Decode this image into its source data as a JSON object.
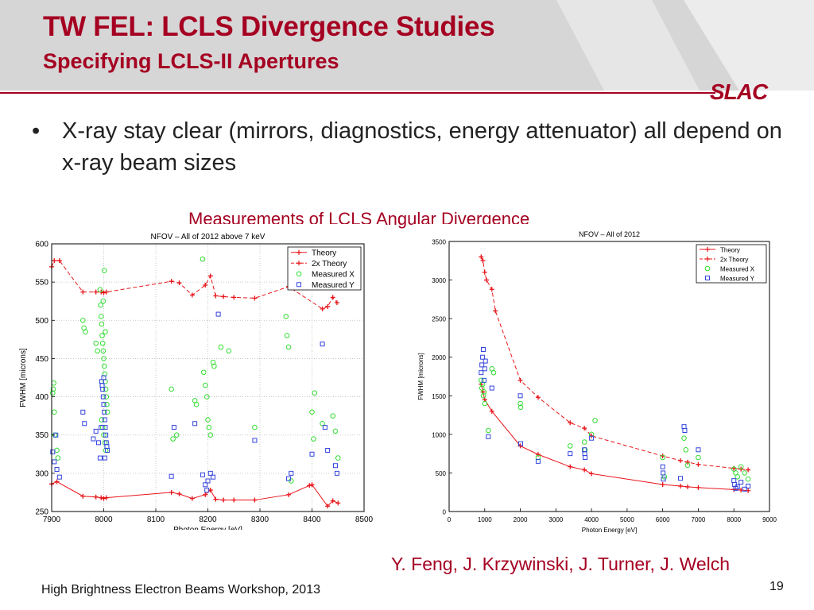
{
  "slide": {
    "title": "TW FEL: LCLS Divergence Studies",
    "subtitle": "Specifying LCLS-II Apertures",
    "logo": "SLAC",
    "bullet": "X-ray stay clear (mirrors, diagnostics, energy attenuator) all depend on x-ray beam sizes",
    "bullet_marker": "•",
    "caption": "Measurements of LCLS Angular Divergence",
    "authors": "Y. Feng, J. Krzywinski, J. Turner, J. Welch",
    "footer": "High Brightness Electron Beams Workshop, 2013",
    "page_number": "19",
    "accent_color": "#a50021"
  },
  "chart_data": [
    {
      "type": "scatter",
      "title": "NFOV – All of 2012 above 7 keV",
      "xlabel": "Photon Energy [eV]",
      "ylabel": "FWHM [microns]",
      "xlim": [
        7900,
        8500
      ],
      "ylim": [
        250,
        600
      ],
      "xticks": [
        7900,
        8000,
        8100,
        8200,
        8300,
        8400,
        8500
      ],
      "yticks": [
        250,
        300,
        350,
        400,
        450,
        500,
        550,
        600
      ],
      "grid": true,
      "legend": "top-right",
      "series": [
        {
          "name": "Theory",
          "style": "line-plus",
          "color": "#e8141a",
          "x": [
            7900,
            7910,
            7960,
            7985,
            7995,
            8000,
            8005,
            8130,
            8145,
            8170,
            8195,
            8205,
            8215,
            8230,
            8250,
            8290,
            8355,
            8395,
            8400,
            8430,
            8440,
            8450
          ],
          "y": [
            286,
            289,
            270,
            269,
            268,
            267,
            268,
            275,
            273,
            267,
            272,
            278,
            266,
            265,
            265,
            265,
            272,
            284,
            285,
            257,
            264,
            261
          ]
        },
        {
          "name": "2x  Theory",
          "style": "dash-plus",
          "color": "#e8141a",
          "x": [
            7900,
            7905,
            7915,
            7960,
            7985,
            7995,
            8000,
            8005,
            8130,
            8145,
            8170,
            8195,
            8205,
            8215,
            8230,
            8250,
            8290,
            8355,
            8420,
            8430,
            8440,
            8448
          ],
          "y": [
            570,
            578,
            578,
            537,
            537,
            537,
            536,
            537,
            551,
            549,
            533,
            546,
            558,
            532,
            531,
            530,
            529,
            544,
            515,
            518,
            530,
            523
          ]
        },
        {
          "name": "Measured X",
          "style": "circle",
          "color": "#33dd33",
          "x": [
            7902,
            7903,
            7904,
            7905,
            7906,
            7910,
            7912,
            7960,
            7962,
            7965,
            7985,
            7988,
            7993,
            7994,
            7995,
            7996,
            7997,
            7998,
            7999,
            8000,
            8001,
            8002,
            8003,
            8004,
            8005,
            8006,
            8007,
            7996,
            7998,
            8000,
            8002,
            8004,
            8001,
            7999,
            8003,
            8130,
            8133,
            8140,
            8175,
            8178,
            8190,
            8192,
            8195,
            8198,
            8200,
            8202,
            8205,
            8210,
            8212,
            8225,
            8240,
            8290,
            8350,
            8352,
            8355,
            8360,
            8400,
            8403,
            8405,
            8420,
            8440,
            8445,
            8448,
            8450
          ],
          "y": [
            405,
            410,
            418,
            380,
            350,
            330,
            320,
            500,
            490,
            485,
            470,
            460,
            540,
            520,
            505,
            495,
            480,
            470,
            460,
            450,
            440,
            430,
            420,
            410,
            400,
            390,
            380,
            370,
            360,
            350,
            340,
            330,
            565,
            525,
            485,
            410,
            345,
            350,
            395,
            390,
            580,
            432,
            415,
            400,
            370,
            360,
            350,
            445,
            440,
            465,
            460,
            360,
            505,
            480,
            465,
            290,
            380,
            345,
            405,
            365,
            375,
            355,
            560,
            320
          ]
        },
        {
          "name": "Measured Y",
          "style": "square",
          "color": "#3344dd",
          "x": [
            7902,
            7905,
            7908,
            7910,
            7915,
            7960,
            7963,
            7980,
            7985,
            7990,
            7993,
            7995,
            7996,
            7997,
            7998,
            7999,
            8000,
            8001,
            8002,
            8003,
            8004,
            8005,
            8006,
            8007,
            8000,
            8002,
            8130,
            8135,
            8175,
            8190,
            8195,
            8198,
            8200,
            8205,
            8210,
            8220,
            8290,
            8355,
            8360,
            8400,
            8420,
            8425,
            8430,
            8445,
            8448
          ],
          "y": [
            328,
            315,
            350,
            305,
            295,
            380,
            365,
            345,
            355,
            340,
            320,
            360,
            420,
            415,
            410,
            400,
            390,
            380,
            370,
            360,
            350,
            340,
            335,
            330,
            425,
            320,
            296,
            360,
            365,
            298,
            285,
            278,
            290,
            300,
            295,
            508,
            343,
            293,
            300,
            325,
            469,
            360,
            330,
            310,
            300
          ]
        }
      ]
    },
    {
      "type": "scatter",
      "title": "NFOV – All of 2012",
      "xlabel": "Photon Energy [eV]",
      "ylabel": "FWHM [microns]",
      "xlim": [
        0,
        9000
      ],
      "ylim": [
        0,
        3500
      ],
      "xticks": [
        0,
        1000,
        2000,
        3000,
        4000,
        5000,
        6000,
        7000,
        8000,
        9000
      ],
      "yticks": [
        0,
        500,
        1000,
        1500,
        2000,
        2500,
        3000,
        3500
      ],
      "grid": false,
      "legend": "top-right",
      "series": [
        {
          "name": "Theory",
          "style": "line-plus",
          "color": "#e8141a",
          "x": [
            900,
            950,
            1000,
            1200,
            2000,
            2500,
            3400,
            3800,
            4000,
            6000,
            6500,
            6700,
            7000,
            8000,
            8200,
            8400
          ],
          "y": [
            1650,
            1550,
            1450,
            1300,
            850,
            740,
            580,
            540,
            490,
            350,
            330,
            320,
            310,
            285,
            278,
            270
          ]
        },
        {
          "name": "2x  Theory",
          "style": "dash-plus",
          "color": "#e8141a",
          "x": [
            900,
            950,
            1000,
            1050,
            1200,
            1300,
            2000,
            2500,
            3400,
            3800,
            4000,
            6000,
            6500,
            6700,
            7000,
            8000,
            8200,
            8400
          ],
          "y": [
            3300,
            3250,
            3100,
            3000,
            2880,
            2600,
            1700,
            1480,
            1150,
            1080,
            980,
            720,
            660,
            640,
            610,
            560,
            550,
            540
          ]
        },
        {
          "name": "Measured X",
          "style": "circle",
          "color": "#33dd33",
          "x": [
            900,
            920,
            940,
            960,
            980,
            1000,
            1100,
            1200,
            1250,
            2000,
            2010,
            2500,
            3400,
            3800,
            3820,
            4000,
            4100,
            6000,
            6050,
            6600,
            6650,
            6700,
            7000,
            8000,
            8050,
            8100,
            8200,
            8300,
            8400
          ],
          "y": [
            1700,
            1600,
            1650,
            1500,
            1550,
            1400,
            1050,
            1850,
            1800,
            1400,
            1350,
            700,
            850,
            900,
            800,
            1000,
            1180,
            700,
            450,
            950,
            800,
            600,
            700,
            550,
            500,
            450,
            580,
            500,
            420
          ]
        },
        {
          "name": "Measured Y",
          "style": "square",
          "color": "#3344dd",
          "x": [
            900,
            920,
            940,
            960,
            980,
            1000,
            1020,
            1100,
            1200,
            2000,
            2010,
            2500,
            3400,
            3800,
            3810,
            3820,
            4000,
            6000,
            6010,
            6020,
            6500,
            6600,
            6620,
            7000,
            8000,
            8020,
            8050,
            8100,
            8200,
            8300,
            8400
          ],
          "y": [
            1800,
            1900,
            2000,
            2100,
            1700,
            1850,
            1950,
            970,
            1600,
            1500,
            880,
            650,
            750,
            800,
            750,
            700,
            950,
            580,
            500,
            420,
            430,
            1100,
            1050,
            800,
            400,
            350,
            300,
            320,
            380,
            290,
            330
          ]
        }
      ]
    }
  ]
}
